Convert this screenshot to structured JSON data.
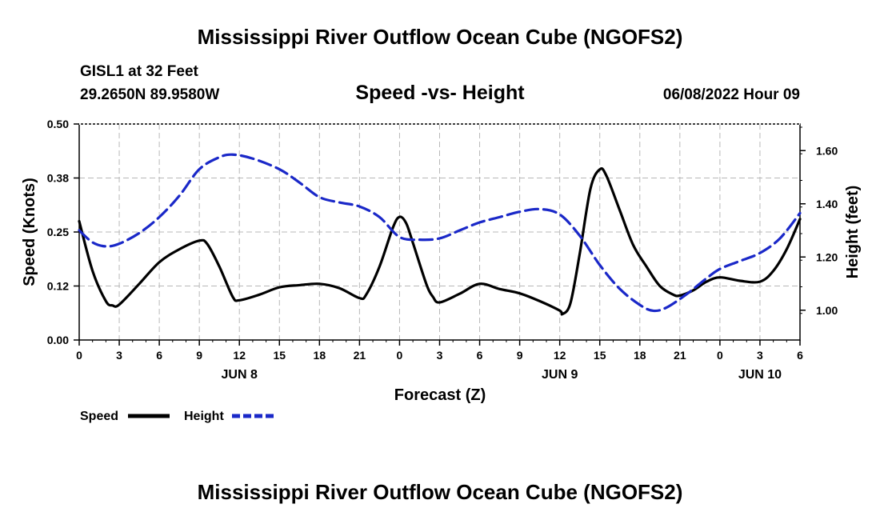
{
  "chart_data": {
    "type": "line",
    "title": "Mississippi River Outflow Ocean Cube (NGOFS2)",
    "subtitle": "Speed -vs- Height",
    "station": "GISL1 at 32 Feet",
    "coords": "29.2650N  89.9580W",
    "datetime": "06/08/2022 Hour 09",
    "xlabel": "Forecast (Z)",
    "ylabel_left": "Speed (Knots)",
    "ylabel_right": "Height (feet)",
    "x_ticks": [
      "0",
      "3",
      "6",
      "9",
      "12",
      "15",
      "18",
      "21",
      "0",
      "3",
      "6",
      "9",
      "12",
      "15",
      "18",
      "21",
      "0",
      "3",
      "6"
    ],
    "date_labels": [
      {
        "text": "JUN 8",
        "hour": 12
      },
      {
        "text": "JUN 9",
        "hour": 36
      },
      {
        "text": "JUN 10",
        "hour": 51
      }
    ],
    "x_range": [
      0,
      54
    ],
    "ylim_left": [
      0,
      0.5
    ],
    "ylim_right": [
      0.888,
      1.7
    ],
    "left_ticks": [
      "0.00",
      "0.12",
      "0.25",
      "0.38",
      "0.50"
    ],
    "left_tick_values": [
      0,
      0.125,
      0.25,
      0.375,
      0.5
    ],
    "right_ticks": [
      "1.00",
      "1.20",
      "1.40",
      "1.60"
    ],
    "right_tick_values": [
      1.0,
      1.2,
      1.4,
      1.6
    ],
    "series": [
      {
        "name": "Speed",
        "axis": "left",
        "color": "#000000",
        "dashed": false,
        "points": [
          [
            0,
            0.275
          ],
          [
            1,
            0.16
          ],
          [
            2,
            0.09
          ],
          [
            2.5,
            0.08
          ],
          [
            3,
            0.082
          ],
          [
            4.5,
            0.13
          ],
          [
            6,
            0.18
          ],
          [
            7.5,
            0.21
          ],
          [
            9,
            0.23
          ],
          [
            9.6,
            0.222
          ],
          [
            10.5,
            0.17
          ],
          [
            11.5,
            0.1
          ],
          [
            12,
            0.092
          ],
          [
            13.5,
            0.105
          ],
          [
            15,
            0.122
          ],
          [
            16.5,
            0.127
          ],
          [
            18,
            0.13
          ],
          [
            19.5,
            0.12
          ],
          [
            21,
            0.097
          ],
          [
            21.5,
            0.105
          ],
          [
            22.5,
            0.17
          ],
          [
            23.5,
            0.26
          ],
          [
            24,
            0.285
          ],
          [
            24.5,
            0.27
          ],
          [
            25,
            0.225
          ],
          [
            26,
            0.13
          ],
          [
            26.5,
            0.1
          ],
          [
            27,
            0.087
          ],
          [
            28.5,
            0.107
          ],
          [
            30,
            0.13
          ],
          [
            31.5,
            0.118
          ],
          [
            33,
            0.108
          ],
          [
            34.5,
            0.09
          ],
          [
            36,
            0.068
          ],
          [
            36.2,
            0.06
          ],
          [
            36.8,
            0.085
          ],
          [
            37.5,
            0.2
          ],
          [
            38.3,
            0.35
          ],
          [
            39,
            0.395
          ],
          [
            39.5,
            0.38
          ],
          [
            40.5,
            0.3
          ],
          [
            41.5,
            0.22
          ],
          [
            42.5,
            0.17
          ],
          [
            43.5,
            0.125
          ],
          [
            44.5,
            0.105
          ],
          [
            45,
            0.103
          ],
          [
            46,
            0.115
          ],
          [
            47,
            0.135
          ],
          [
            48,
            0.145
          ],
          [
            49.5,
            0.137
          ],
          [
            51,
            0.135
          ],
          [
            52,
            0.16
          ],
          [
            53,
            0.21
          ],
          [
            54,
            0.28
          ]
        ]
      },
      {
        "name": "Height",
        "axis": "right",
        "color": "#1a28c8",
        "dashed": true,
        "points": [
          [
            0,
            1.3
          ],
          [
            1,
            1.255
          ],
          [
            2,
            1.24
          ],
          [
            3,
            1.25
          ],
          [
            4.5,
            1.29
          ],
          [
            6,
            1.35
          ],
          [
            7.5,
            1.43
          ],
          [
            9,
            1.53
          ],
          [
            10.5,
            1.575
          ],
          [
            11.5,
            1.585
          ],
          [
            13,
            1.57
          ],
          [
            15,
            1.53
          ],
          [
            16.5,
            1.48
          ],
          [
            18,
            1.425
          ],
          [
            19.5,
            1.405
          ],
          [
            21,
            1.39
          ],
          [
            22.5,
            1.35
          ],
          [
            24,
            1.275
          ],
          [
            25.5,
            1.265
          ],
          [
            27,
            1.27
          ],
          [
            28.5,
            1.3
          ],
          [
            30,
            1.33
          ],
          [
            31.5,
            1.35
          ],
          [
            33,
            1.37
          ],
          [
            34.5,
            1.38
          ],
          [
            36,
            1.36
          ],
          [
            37.5,
            1.28
          ],
          [
            39,
            1.17
          ],
          [
            40.5,
            1.08
          ],
          [
            42,
            1.02
          ],
          [
            43,
            0.998
          ],
          [
            44,
            1.01
          ],
          [
            45.5,
            1.06
          ],
          [
            47,
            1.12
          ],
          [
            48,
            1.155
          ],
          [
            49.5,
            1.185
          ],
          [
            51,
            1.215
          ],
          [
            52.5,
            1.27
          ],
          [
            54,
            1.365
          ]
        ]
      }
    ]
  },
  "footer_title": "Mississippi River Outflow Ocean Cube (NGOFS2)",
  "legend": [
    {
      "label": "Speed",
      "color": "#000000",
      "dashed": false
    },
    {
      "label": "Height",
      "color": "#1a28c8",
      "dashed": true
    }
  ]
}
